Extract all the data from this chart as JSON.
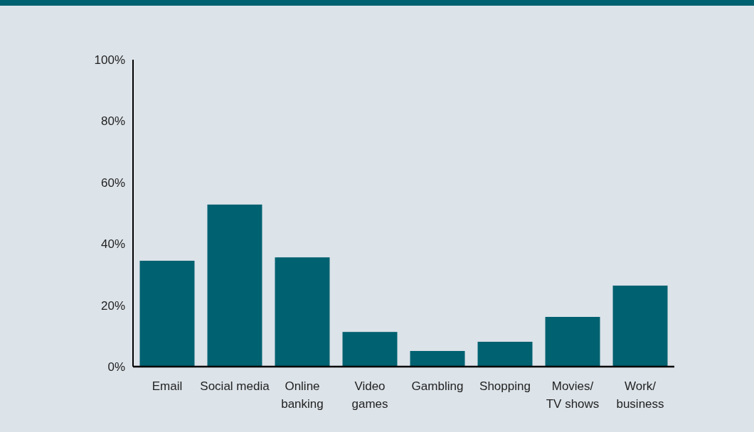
{
  "chart_data": {
    "type": "bar",
    "categories": [
      "Email",
      "Social media",
      "Online\nbanking",
      "Video\ngames",
      "Gambling",
      "Shopping",
      "Movies/\nTV shows",
      "Work/\nbusiness"
    ],
    "values": [
      34.5,
      52.8,
      35.6,
      11.3,
      5.1,
      8.1,
      16.2,
      26.4
    ],
    "color": "#006170",
    "ylim": [
      0,
      100
    ],
    "yticks": [
      {
        "value": 0,
        "label": "0%"
      },
      {
        "value": 20,
        "label": "20%"
      },
      {
        "value": 40,
        "label": "40%"
      },
      {
        "value": 60,
        "label": "60%"
      },
      {
        "value": 80,
        "label": "80%"
      },
      {
        "value": 100,
        "label": "100%"
      }
    ],
    "grid": false
  }
}
